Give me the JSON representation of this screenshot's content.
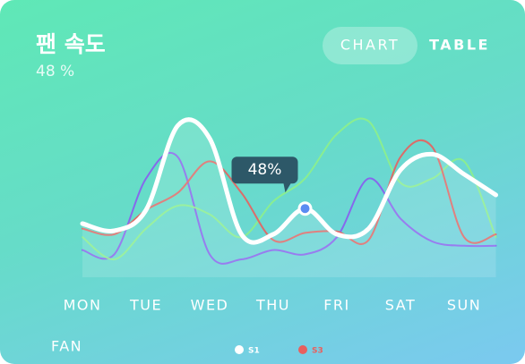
{
  "header": {
    "title": "팬 속도",
    "value": "48 %"
  },
  "tabs": [
    "CHART",
    "TABLE"
  ],
  "footer": {
    "label": "FAN"
  },
  "chart_data": {
    "type": "line",
    "categories": [
      "MON",
      null,
      "TUE",
      null,
      "WED",
      null,
      "THU",
      null,
      "FRI",
      null,
      "SAT",
      null,
      "SUN",
      null
    ],
    "ylim": [
      0,
      120
    ],
    "series": [
      {
        "name": "S1",
        "color": "#ffffff",
        "values": [
          37.5,
          32.5,
          47,
          106,
          97,
          30,
          30,
          48,
          30,
          34,
          75,
          86,
          72,
          57.5
        ],
        "value_labels": [
          null,
          null,
          null,
          null,
          null,
          null,
          null,
          "48%",
          null,
          null,
          null,
          null,
          null,
          null
        ]
      },
      {
        "name": "S3",
        "color": "#e8605e",
        "values": [
          34,
          30,
          47,
          59,
          81,
          59,
          26,
          31,
          32,
          26,
          84,
          91,
          28,
          30
        ]
      },
      {
        "color": "#8ef08a",
        "values": [
          28,
          12.5,
          34,
          50,
          44,
          28,
          53,
          69,
          100,
          109,
          66,
          69,
          81,
          28
        ]
      },
      {
        "color": "#8a5cf0",
        "values": [
          19,
          16,
          69,
          84,
          16,
          12.5,
          19,
          16,
          28,
          69,
          41,
          25,
          22,
          22
        ]
      }
    ]
  }
}
